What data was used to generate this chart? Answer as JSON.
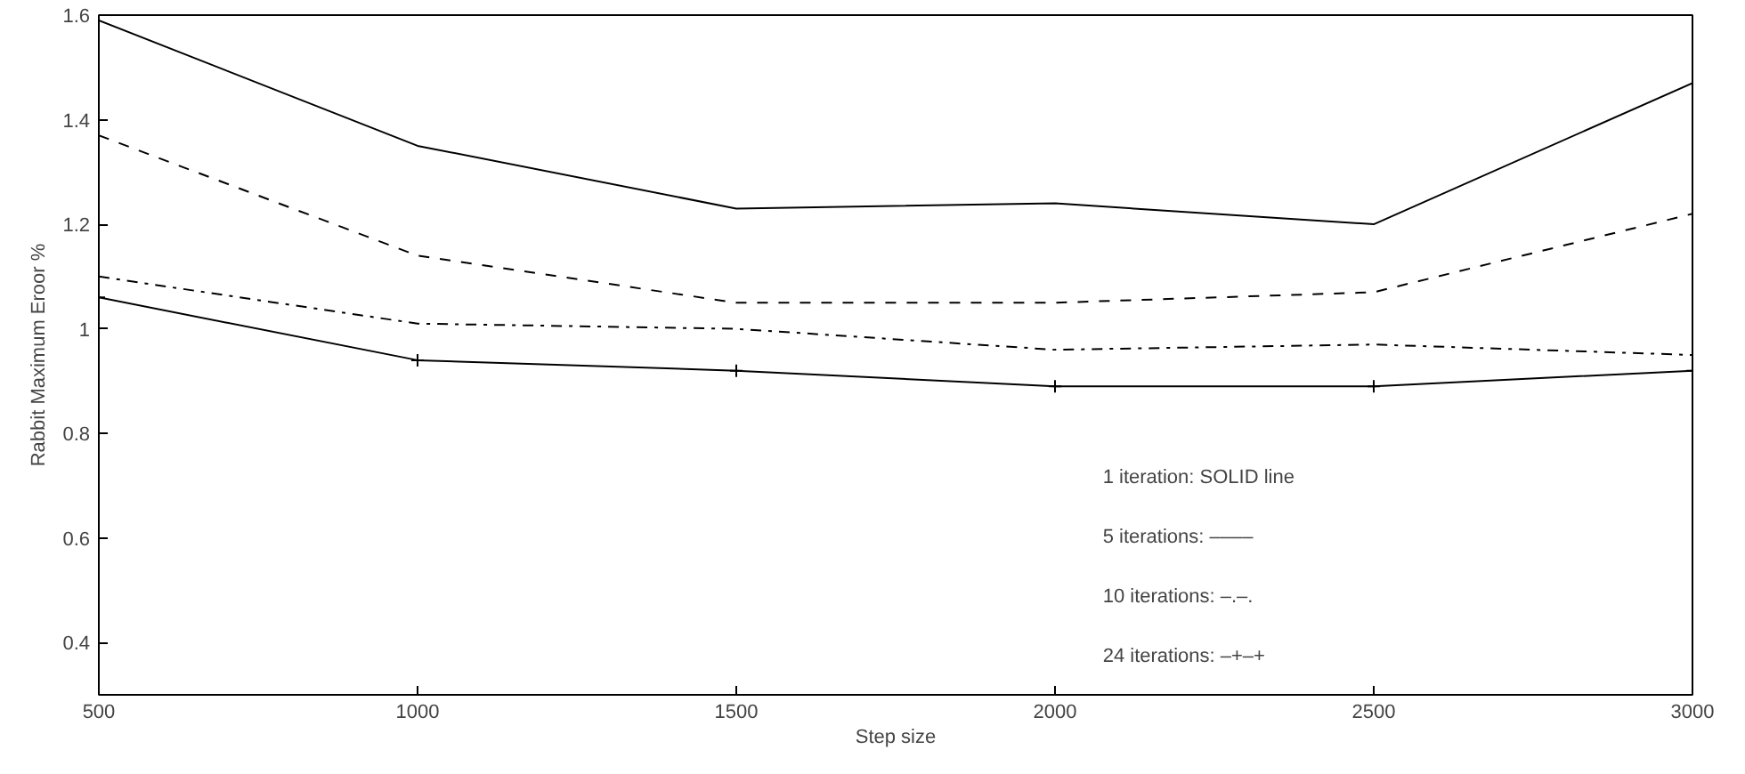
{
  "chart_data": {
    "type": "line",
    "xlabel": "Step size",
    "ylabel": "Rabbit Maximum Eroor %",
    "x": [
      500,
      1000,
      1500,
      2000,
      2500,
      3000
    ],
    "series": [
      {
        "color": "#000000",
        "line_style": "solid",
        "marker": "none",
        "values": [
          1.59,
          1.35,
          1.23,
          1.24,
          1.2,
          1.47
        ]
      },
      {
        "color": "#000000",
        "line_style": "dashed",
        "marker": "none",
        "values": [
          1.37,
          1.14,
          1.05,
          1.05,
          1.07,
          1.22
        ]
      },
      {
        "color": "#000000",
        "line_style": "dashdot",
        "marker": "none",
        "values": [
          1.1,
          1.01,
          1.0,
          0.96,
          0.97,
          0.95
        ]
      },
      {
        "color": "#000000",
        "line_style": "solid",
        "marker": "cross",
        "values": [
          1.06,
          0.94,
          0.92,
          0.89,
          0.89,
          0.92
        ]
      }
    ],
    "xlim": [
      500,
      3000
    ],
    "ylim": [
      0.3,
      1.6
    ],
    "xticks": [
      500,
      1000,
      1500,
      2000,
      2500,
      3000
    ],
    "yticks": [
      0.4,
      0.6,
      0.8,
      1,
      1.2,
      1.4,
      1.6
    ],
    "grid": false,
    "annotations": [
      "1 iteration:   SOLID line",
      "5 iterations:  ––––",
      "10 iterations:  –.–.",
      "24 iterations:  –+–+"
    ]
  }
}
